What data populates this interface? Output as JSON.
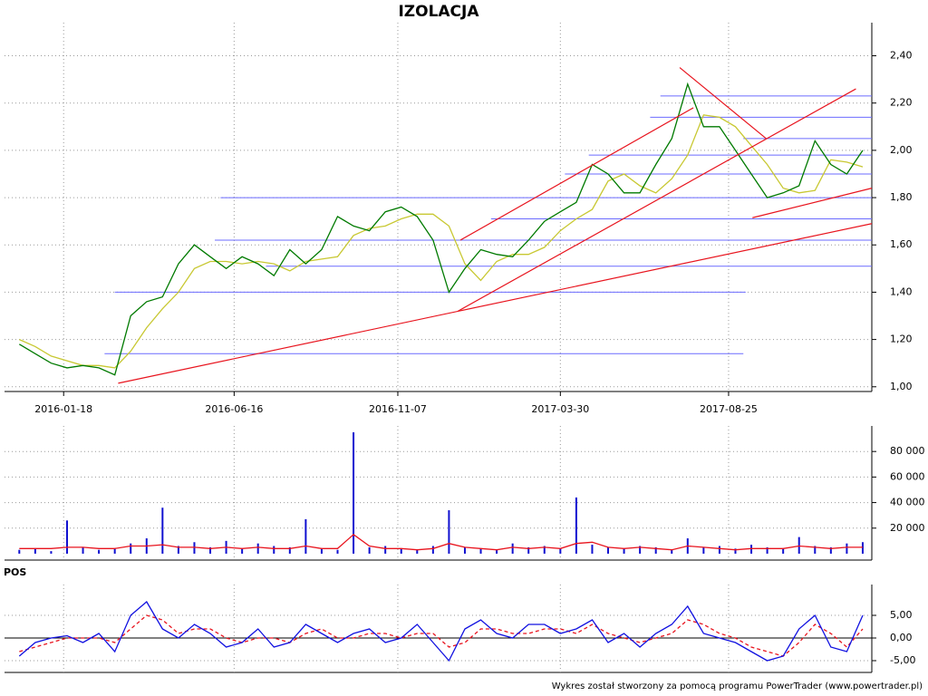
{
  "chart_data": [
    {
      "type": "line",
      "title": "IZOLACJA",
      "x": [
        "2015-12-10",
        "2015-12-24",
        "2016-01-07",
        "2016-01-21",
        "2016-02-04",
        "2016-02-18",
        "2016-03-03",
        "2016-03-17",
        "2016-03-31",
        "2016-04-14",
        "2016-04-28",
        "2016-05-12",
        "2016-05-26",
        "2016-06-09",
        "2016-06-23",
        "2016-07-07",
        "2016-07-21",
        "2016-08-04",
        "2016-08-18",
        "2016-09-01",
        "2016-09-15",
        "2016-09-29",
        "2016-10-13",
        "2016-10-27",
        "2016-11-10",
        "2016-11-24",
        "2016-12-08",
        "2016-12-22",
        "2017-01-05",
        "2017-01-19",
        "2017-02-02",
        "2017-02-16",
        "2017-03-02",
        "2017-03-16",
        "2017-03-30",
        "2017-04-13",
        "2017-04-27",
        "2017-05-11",
        "2017-05-25",
        "2017-06-08",
        "2017-06-22",
        "2017-07-06",
        "2017-07-20",
        "2017-08-03",
        "2017-08-17",
        "2017-08-31",
        "2017-09-14",
        "2017-09-28",
        "2017-10-12",
        "2017-10-26",
        "2017-11-09",
        "2017-11-23",
        "2017-12-07",
        "2017-12-21"
      ],
      "series": [
        {
          "color": "#007a00",
          "values": [
            1.18,
            1.14,
            1.1,
            1.08,
            1.09,
            1.08,
            1.05,
            1.3,
            1.36,
            1.38,
            1.52,
            1.6,
            1.55,
            1.5,
            1.55,
            1.52,
            1.47,
            1.58,
            1.52,
            1.58,
            1.72,
            1.68,
            1.66,
            1.74,
            1.76,
            1.72,
            1.62,
            1.4,
            1.5,
            1.58,
            1.56,
            1.55,
            1.62,
            1.7,
            1.74,
            1.78,
            1.94,
            1.9,
            1.82,
            1.82,
            1.94,
            2.05,
            2.28,
            2.1,
            2.1,
            2.0,
            1.9,
            1.8,
            1.82,
            1.85,
            2.04,
            1.94,
            1.9,
            2.0
          ]
        },
        {
          "color": "#c8c832",
          "values": [
            1.2,
            1.17,
            1.13,
            1.11,
            1.09,
            1.09,
            1.08,
            1.15,
            1.25,
            1.33,
            1.4,
            1.5,
            1.53,
            1.53,
            1.52,
            1.53,
            1.52,
            1.49,
            1.53,
            1.54,
            1.55,
            1.64,
            1.67,
            1.68,
            1.71,
            1.73,
            1.73,
            1.68,
            1.52,
            1.45,
            1.53,
            1.56,
            1.56,
            1.59,
            1.66,
            1.71,
            1.75,
            1.87,
            1.9,
            1.85,
            1.82,
            1.88,
            1.98,
            2.15,
            2.14,
            2.1,
            2.02,
            1.94,
            1.84,
            1.82,
            1.83,
            1.96,
            1.95,
            1.93
          ]
        }
      ],
      "xlim": [
        "2015-11-27",
        "2017-12-29"
      ],
      "xticks": [
        "2016-01-18",
        "2016-06-16",
        "2016-11-07",
        "2017-03-30",
        "2017-08-25"
      ],
      "ylim": [
        0.98,
        2.54
      ],
      "yticks": [
        {
          "value": 1.0,
          "label": "1,00"
        },
        {
          "value": 1.2,
          "label": "1,20"
        },
        {
          "value": 1.4,
          "label": "1,40"
        },
        {
          "value": 1.6,
          "label": "1,60"
        },
        {
          "value": 1.8,
          "label": "1,80"
        },
        {
          "value": 2.0,
          "label": "2,00"
        },
        {
          "value": 2.2,
          "label": "2,20"
        },
        {
          "value": 2.4,
          "label": "2,40"
        }
      ],
      "grid": true,
      "hline_color": "#6b6bff",
      "hlines": [
        {
          "y": 1.14,
          "x": [
            "2016-02-23",
            "2017-09-07"
          ]
        },
        {
          "y": 1.4,
          "x": [
            "2016-03-03",
            "2017-09-09"
          ]
        },
        {
          "y": 1.51,
          "x": [
            "2016-07-14",
            "2017-12-29"
          ]
        },
        {
          "y": 1.62,
          "x": [
            "2016-05-30",
            "2017-12-29"
          ]
        },
        {
          "y": 1.71,
          "x": [
            "2017-01-28",
            "2017-12-29"
          ]
        },
        {
          "y": 1.8,
          "x": [
            "2016-06-04",
            "2017-12-29"
          ]
        },
        {
          "y": 1.9,
          "x": [
            "2017-04-03",
            "2017-12-29"
          ]
        },
        {
          "y": 1.98,
          "x": [
            "2017-04-24",
            "2017-12-29"
          ]
        },
        {
          "y": 2.05,
          "x": [
            "2017-09-07",
            "2017-12-29"
          ]
        },
        {
          "y": 2.14,
          "x": [
            "2017-06-17",
            "2017-12-29"
          ]
        },
        {
          "y": 2.23,
          "x": [
            "2017-06-26",
            "2017-12-29"
          ]
        }
      ],
      "trend_color": "#e8141e",
      "trendlines": [
        {
          "x": [
            "2016-03-06",
            "2017-12-29"
          ],
          "y": [
            1.015,
            1.69
          ]
        },
        {
          "x": [
            "2016-12-30",
            "2017-12-15"
          ],
          "y": [
            1.32,
            2.26
          ]
        },
        {
          "x": [
            "2017-01-01",
            "2017-07-25"
          ],
          "y": [
            1.62,
            2.18
          ]
        },
        {
          "x": [
            "2017-07-13",
            "2017-09-27"
          ],
          "y": [
            2.35,
            2.05
          ]
        },
        {
          "x": [
            "2017-09-15",
            "2017-12-29"
          ],
          "y": [
            1.715,
            1.84
          ]
        }
      ]
    },
    {
      "type": "bar",
      "series": [
        {
          "style": "bar",
          "color": "#1010d0",
          "values": [
            3000,
            4000,
            2000,
            26000,
            5000,
            3000,
            4000,
            8000,
            12000,
            36000,
            6000,
            9000,
            5000,
            10000,
            4000,
            8000,
            6000,
            5000,
            27000,
            4000,
            3000,
            95000,
            5000,
            6000,
            4000,
            3000,
            6000,
            34000,
            5000,
            4000,
            3000,
            8000,
            5000,
            6000,
            4000,
            44000,
            7000,
            5000,
            4000,
            6000,
            5000,
            3000,
            12000,
            5000,
            6000,
            4000,
            7000,
            5000,
            4000,
            13000,
            6000,
            5000,
            8000,
            9000
          ]
        },
        {
          "style": "line",
          "color": "#e8141e",
          "values": [
            4000,
            4000,
            4000,
            5000,
            5000,
            4000,
            4000,
            6000,
            6000,
            7000,
            5000,
            5000,
            4000,
            5000,
            4000,
            5000,
            4000,
            4000,
            6000,
            4000,
            4000,
            15000,
            6000,
            4000,
            4000,
            3000,
            4000,
            8000,
            5000,
            4000,
            3000,
            5000,
            4000,
            5000,
            4000,
            8000,
            9000,
            5000,
            4000,
            5000,
            4000,
            3000,
            6000,
            5000,
            4000,
            3000,
            4000,
            4000,
            4000,
            6000,
            5000,
            4000,
            5000,
            5000
          ]
        }
      ],
      "ylim": [
        -5000,
        100000
      ],
      "yticks": [
        {
          "value": 20000,
          "label": "20 000"
        },
        {
          "value": 40000,
          "label": "40 000"
        },
        {
          "value": 60000,
          "label": "60 000"
        },
        {
          "value": 80000,
          "label": "80 000"
        }
      ],
      "grid": true
    },
    {
      "type": "line",
      "title": "POS",
      "series": [
        {
          "color": "#1010e0",
          "values": [
            -4,
            -1,
            0,
            0.5,
            -1,
            1,
            -3,
            5,
            8,
            2,
            0,
            3,
            1,
            -2,
            -1,
            2,
            -2,
            -1,
            3,
            1,
            -1,
            1,
            2,
            -1,
            0,
            3,
            -1,
            -5,
            2,
            4,
            1,
            0,
            3,
            3,
            1,
            2,
            4,
            -1,
            1,
            -2,
            1,
            3,
            7,
            1,
            0,
            -1,
            -3,
            -5,
            -4,
            2,
            5,
            -2,
            -3,
            5
          ]
        },
        {
          "color": "#e8141e",
          "dash": true,
          "values": [
            -3,
            -2,
            -1,
            0,
            0,
            0,
            -1,
            2,
            5,
            4,
            1,
            2,
            2,
            0,
            -1,
            0,
            0,
            -1,
            1,
            2,
            0,
            0,
            1,
            1,
            0,
            1,
            1,
            -2,
            -1,
            2,
            2,
            1,
            1,
            2,
            2,
            1,
            3,
            1,
            0,
            -1,
            0,
            1,
            4,
            3,
            1,
            0,
            -2,
            -3,
            -4,
            -1,
            3,
            1,
            -2,
            2
          ]
        }
      ],
      "ylim": [
        -7.6,
        11.8
      ],
      "yticks": [
        {
          "value": -5,
          "label": "-5,00"
        },
        {
          "value": 0,
          "label": "0,00"
        },
        {
          "value": 5,
          "label": "5,00"
        }
      ],
      "zero_line": true,
      "grid": true
    }
  ],
  "credit": "Wykres został stworzony za pomocą programu PowerTrader (www.powertrader.pl)"
}
